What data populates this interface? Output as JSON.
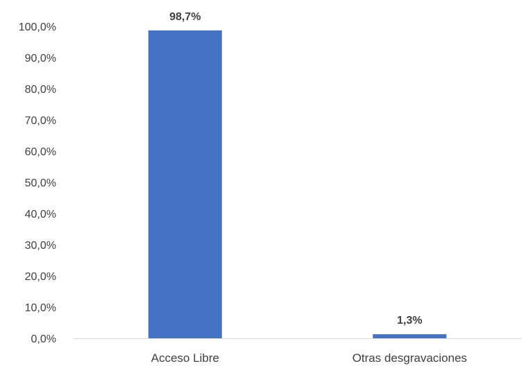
{
  "chart_data": {
    "type": "bar",
    "categories": [
      "Acceso Libre",
      "Otras desgravaciones"
    ],
    "values": [
      98.7,
      1.3
    ],
    "data_labels": [
      "98,7%",
      "1,3%"
    ],
    "ylim": [
      0,
      100
    ],
    "yticks": [
      "0,0%",
      "10,0%",
      "20,0%",
      "30,0%",
      "40,0%",
      "50,0%",
      "60,0%",
      "70,0%",
      "80,0%",
      "90,0%",
      "100,0%"
    ],
    "title": "",
    "xlabel": "",
    "ylabel": "",
    "grid": false,
    "legend": "none",
    "bar_color": "#4472C4",
    "axis_color": "#D9D9D9"
  }
}
